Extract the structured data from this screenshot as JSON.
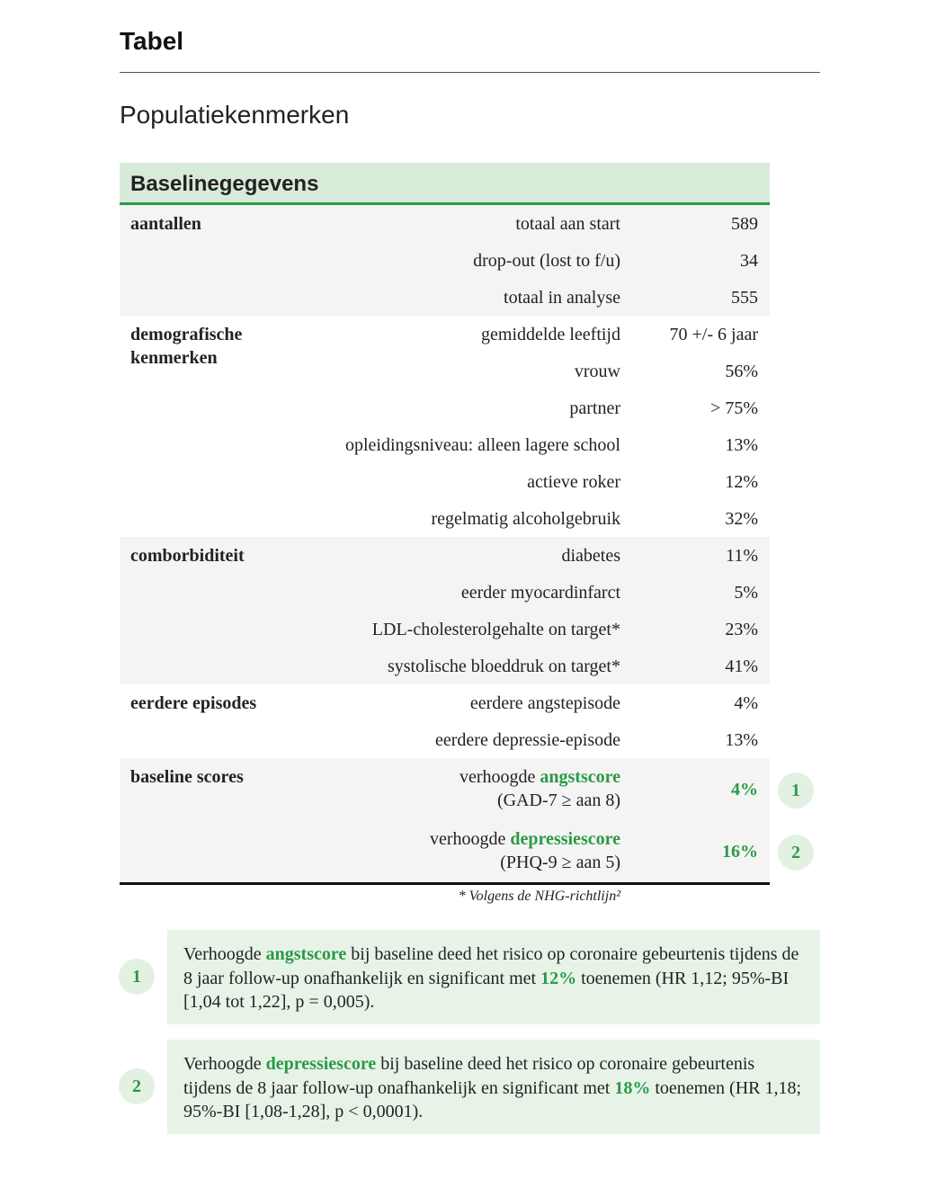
{
  "header": {
    "title": "Tabel",
    "subtitle": "Populatiekenmerken"
  },
  "table": {
    "title": "Baselinegegevens",
    "groups": [
      {
        "label": "aantallen",
        "rows": [
          {
            "label": [
              {
                "text": "totaal aan start"
              }
            ],
            "value": "589"
          },
          {
            "label": [
              {
                "text": "drop-out (lost to f/u)"
              }
            ],
            "value": "34"
          },
          {
            "label": [
              {
                "text": "totaal in analyse"
              }
            ],
            "value": "555"
          }
        ]
      },
      {
        "label": "demografische kenmerken",
        "rows": [
          {
            "label": [
              {
                "text": "gemiddelde leeftijd"
              }
            ],
            "value": "70 +/- 6 jaar"
          },
          {
            "label": [
              {
                "text": "vrouw"
              }
            ],
            "value": "56%"
          },
          {
            "label": [
              {
                "text": "partner"
              }
            ],
            "value": "> 75%"
          },
          {
            "label": [
              {
                "text": "opleidingsniveau: alleen lagere school"
              }
            ],
            "value": "13%"
          },
          {
            "label": [
              {
                "text": "actieve roker"
              }
            ],
            "value": "12%"
          },
          {
            "label": [
              {
                "text": "regelmatig alcoholgebruik"
              }
            ],
            "value": "32%"
          }
        ]
      },
      {
        "label": "comborbiditeit",
        "rows": [
          {
            "label": [
              {
                "text": "diabetes"
              }
            ],
            "value": "11%"
          },
          {
            "label": [
              {
                "text": "eerder myocardinfarct"
              }
            ],
            "value": "5%"
          },
          {
            "label": [
              {
                "text": "LDL-cholesterolgehalte on target*"
              }
            ],
            "value": "23%"
          },
          {
            "label": [
              {
                "text": "systolische bloeddruk on target*"
              }
            ],
            "value": "41%"
          }
        ]
      },
      {
        "label": "eerdere episodes",
        "rows": [
          {
            "label": [
              {
                "text": "eerdere angstepisode"
              }
            ],
            "value": "4%"
          },
          {
            "label": [
              {
                "text": "eerdere depressie-episode"
              }
            ],
            "value": "13%"
          }
        ]
      },
      {
        "label": "baseline scores",
        "rows": [
          {
            "label": [
              {
                "text": "verhoogde "
              },
              {
                "text": "angstscore",
                "highlight": true
              }
            ],
            "sublabel": "(GAD-7 ≥ aan 8)",
            "value": "4%",
            "highlight": true,
            "marker": "1"
          },
          {
            "label": [
              {
                "text": "verhoogde "
              },
              {
                "text": "depressiescore",
                "highlight": true
              }
            ],
            "sublabel": "(PHQ-9 ≥ aan 5)",
            "value": "16%",
            "highlight": true,
            "marker": "2"
          }
        ]
      }
    ]
  },
  "footnote": "* Volgens de NHG-richtlijn²",
  "notes": [
    {
      "marker": "1",
      "parts": [
        {
          "text": "Verhoogde "
        },
        {
          "text": "angstscore",
          "highlight": true
        },
        {
          "text": " bij baseline deed het risico op coronaire gebeurtenis tijdens de 8 jaar follow-up onafhankelijk en significant met "
        },
        {
          "text": "12%",
          "highlight": true
        },
        {
          "text": " toenemen (HR 1,12; 95%-BI [1,04 tot 1,22], p = 0,005)."
        }
      ]
    },
    {
      "marker": "2",
      "parts": [
        {
          "text": "Verhoogde "
        },
        {
          "text": "depressiescore",
          "highlight": true
        },
        {
          "text": " bij baseline deed het risico op coronaire gebeurtenis tijdens de 8 jaar follow-up onafhankelijk en significant met "
        },
        {
          "text": "18%",
          "highlight": true
        },
        {
          "text": " toenemen (HR 1,18; 95%-BI [1,08-1,28], p < 0,0001)."
        }
      ]
    }
  ]
}
